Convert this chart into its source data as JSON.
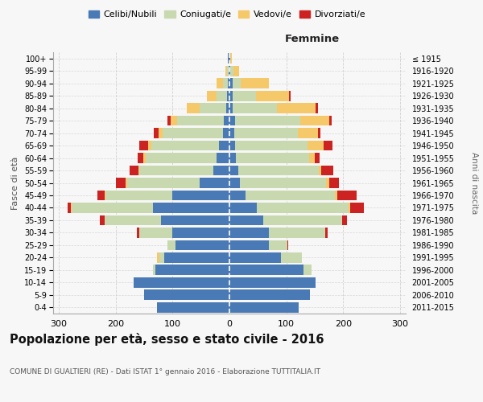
{
  "age_groups": [
    "0-4",
    "5-9",
    "10-14",
    "15-19",
    "20-24",
    "25-29",
    "30-34",
    "35-39",
    "40-44",
    "45-49",
    "50-54",
    "55-59",
    "60-64",
    "65-69",
    "70-74",
    "75-79",
    "80-84",
    "85-89",
    "90-94",
    "95-99",
    "100+"
  ],
  "birth_years": [
    "2011-2015",
    "2006-2010",
    "2001-2005",
    "1996-2000",
    "1991-1995",
    "1986-1990",
    "1981-1985",
    "1976-1980",
    "1971-1975",
    "1966-1970",
    "1961-1965",
    "1956-1960",
    "1951-1955",
    "1946-1950",
    "1941-1945",
    "1936-1940",
    "1931-1935",
    "1926-1930",
    "1921-1925",
    "1916-1920",
    "≤ 1915"
  ],
  "colors": {
    "celibe": "#4a7ab5",
    "coniugato": "#c8d9b0",
    "vedovo": "#f5c96a",
    "divorziato": "#cc2222"
  },
  "males": {
    "celibe": [
      128,
      150,
      168,
      130,
      115,
      95,
      100,
      120,
      135,
      100,
      52,
      28,
      22,
      18,
      12,
      10,
      5,
      4,
      3,
      2,
      3
    ],
    "coniugato": [
      0,
      0,
      0,
      4,
      8,
      14,
      58,
      100,
      142,
      118,
      128,
      130,
      125,
      120,
      105,
      82,
      48,
      18,
      8,
      2,
      0
    ],
    "vedovo": [
      0,
      0,
      0,
      0,
      4,
      0,
      0,
      0,
      2,
      2,
      2,
      2,
      4,
      5,
      8,
      12,
      22,
      18,
      12,
      3,
      0
    ],
    "divorziato": [
      0,
      0,
      0,
      0,
      0,
      0,
      5,
      8,
      5,
      12,
      18,
      15,
      10,
      16,
      8,
      5,
      0,
      0,
      0,
      0,
      0
    ]
  },
  "females": {
    "celibe": [
      122,
      142,
      152,
      130,
      90,
      70,
      70,
      60,
      48,
      28,
      18,
      15,
      12,
      10,
      8,
      10,
      5,
      5,
      5,
      2,
      2
    ],
    "coniugato": [
      0,
      0,
      0,
      14,
      38,
      32,
      98,
      138,
      162,
      158,
      152,
      142,
      128,
      128,
      112,
      115,
      78,
      42,
      15,
      5,
      0
    ],
    "vedovo": [
      0,
      0,
      0,
      0,
      0,
      0,
      0,
      0,
      2,
      3,
      5,
      5,
      10,
      28,
      35,
      50,
      68,
      58,
      50,
      10,
      2
    ],
    "divorziato": [
      0,
      0,
      0,
      0,
      0,
      2,
      5,
      8,
      25,
      35,
      18,
      20,
      8,
      15,
      5,
      5,
      5,
      2,
      0,
      0,
      0
    ]
  },
  "title": "Popolazione per età, sesso e stato civile - 2016",
  "subtitle": "COMUNE DI GUALTIERI (RE) - Dati ISTAT 1° gennaio 2016 - Elaborazione TUTTITALIA.IT",
  "xlabel_femmine": "Femmine",
  "ylabel": "Fasce di età",
  "ylabel_right": "Anni di nascita",
  "legend_labels": [
    "Celibi/Nubili",
    "Coniugati/e",
    "Vedovi/e",
    "Divorziati/e"
  ],
  "xlim": 310,
  "bg_color": "#f7f7f7",
  "grid_color": "#cccccc"
}
